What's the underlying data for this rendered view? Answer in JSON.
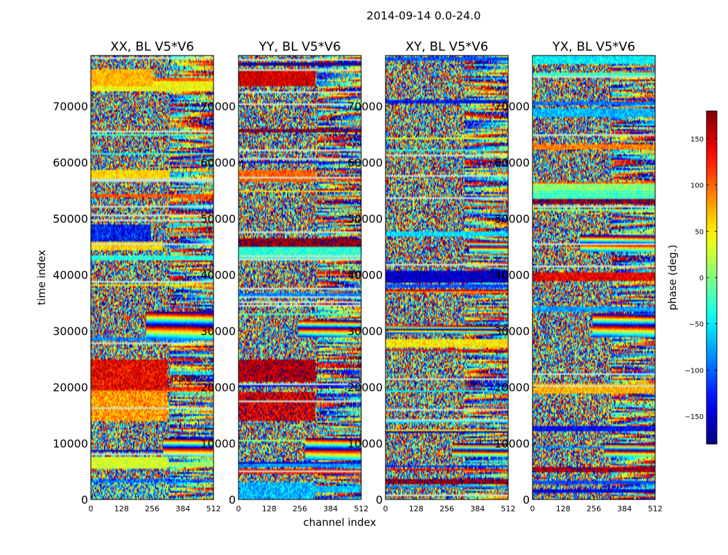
{
  "chart_data": {
    "type": "heatmap",
    "suptitle": "2014-09-14 0.0-24.0",
    "xlabel": "channel index",
    "ylabel": "time index",
    "x_range": [
      0,
      512
    ],
    "y_range": [
      0,
      79000
    ],
    "x_ticks": [
      0,
      128,
      256,
      384,
      512
    ],
    "y_ticks": [
      0,
      10000,
      20000,
      30000,
      40000,
      50000,
      60000,
      70000
    ],
    "colormap": "jet",
    "panels": [
      {
        "title": "XX, BL V5*V6",
        "features": [
          {
            "t": [
              0,
              3000
            ],
            "ch": [
              0,
              320
            ],
            "phase": -40,
            "spread": 140
          },
          {
            "t": [
              3000,
              3600
            ],
            "ch": [
              0,
              512
            ],
            "phase": -100,
            "spread": 50
          },
          {
            "t": [
              5500,
              7500
            ],
            "ch": [
              0,
              320
            ],
            "phase": 30,
            "spread": 30
          },
          {
            "t": [
              7500,
              11000
            ],
            "ch": [
              300,
              512
            ],
            "phase": "fringe"
          },
          {
            "t": [
              14000,
              19000
            ],
            "ch": [
              0,
              320
            ],
            "phase": 80,
            "spread": 40
          },
          {
            "t": [
              19500,
              25000
            ],
            "ch": [
              0,
              320
            ],
            "phase": 140,
            "spread": 40
          },
          {
            "t": [
              28500,
              33500
            ],
            "ch": [
              230,
              512
            ],
            "phase": "fringe"
          },
          {
            "t": [
              44500,
              46000
            ],
            "ch": [
              0,
              300
            ],
            "phase": 60,
            "spread": 25
          },
          {
            "t": [
              46000,
              49000
            ],
            "ch": [
              0,
              250
            ],
            "phase": -130,
            "spread": 50
          },
          {
            "t": [
              56500,
              58500
            ],
            "ch": [
              0,
              330
            ],
            "phase": 60,
            "spread": 25
          },
          {
            "t": [
              73500,
              76500
            ],
            "ch": [
              0,
              260
            ],
            "phase": 70,
            "spread": 25
          }
        ]
      },
      {
        "title": "YY, BL V5*V6",
        "features": [
          {
            "t": [
              0,
              3000
            ],
            "ch": [
              0,
              320
            ],
            "phase": -70,
            "spread": 40
          },
          {
            "t": [
              7000,
              11000
            ],
            "ch": [
              280,
              512
            ],
            "phase": "fringe"
          },
          {
            "t": [
              14000,
              19000
            ],
            "ch": [
              0,
              320
            ],
            "phase": 150,
            "spread": 40
          },
          {
            "t": [
              21000,
              25000
            ],
            "ch": [
              0,
              320
            ],
            "phase": 160,
            "spread": 30
          },
          {
            "t": [
              29000,
              32000
            ],
            "ch": [
              250,
              512
            ],
            "phase": "fringe"
          },
          {
            "t": [
              45000,
              46500
            ],
            "ch": [
              0,
              512
            ],
            "phase": 170,
            "spread": 20
          },
          {
            "t": [
              56500,
              58500
            ],
            "ch": [
              0,
              320
            ],
            "phase": 100,
            "spread": 30
          },
          {
            "t": [
              73500,
              76500
            ],
            "ch": [
              0,
              320
            ],
            "phase": 150,
            "spread": 30
          }
        ]
      },
      {
        "title": "XY, BL V5*V6",
        "features": [
          {
            "t": [
              2600,
              3600
            ],
            "ch": [
              0,
              512
            ],
            "phase": 170,
            "spread": 20
          },
          {
            "t": [
              7500,
              10000
            ],
            "ch": [
              280,
              512
            ],
            "phase": "fringe"
          },
          {
            "t": [
              29500,
              31000
            ],
            "ch": [
              0,
              512
            ],
            "phase": "fringe"
          },
          {
            "t": [
              44000,
              46000
            ],
            "ch": [
              350,
              512
            ],
            "phase": "fringe"
          }
        ]
      },
      {
        "title": "YX, BL V5*V6",
        "features": [
          {
            "t": [
              2800,
              3400
            ],
            "ch": [
              0,
              512
            ],
            "phase": -110,
            "spread": 20
          },
          {
            "t": [
              7500,
              10000
            ],
            "ch": [
              300,
              512
            ],
            "phase": "fringe"
          },
          {
            "t": [
              29000,
              33000
            ],
            "ch": [
              250,
              512
            ],
            "phase": "fringe"
          },
          {
            "t": [
              44000,
              47000
            ],
            "ch": [
              200,
              512
            ],
            "phase": "fringe"
          }
        ]
      }
    ],
    "colorbar": {
      "label": "phase (deg.)",
      "range": [
        -180,
        180
      ],
      "ticks": [
        -150,
        -100,
        -50,
        0,
        50,
        100,
        150
      ],
      "tick_labels": [
        "−150",
        "−100",
        "−50",
        "0",
        "50",
        "100",
        "150"
      ]
    }
  }
}
